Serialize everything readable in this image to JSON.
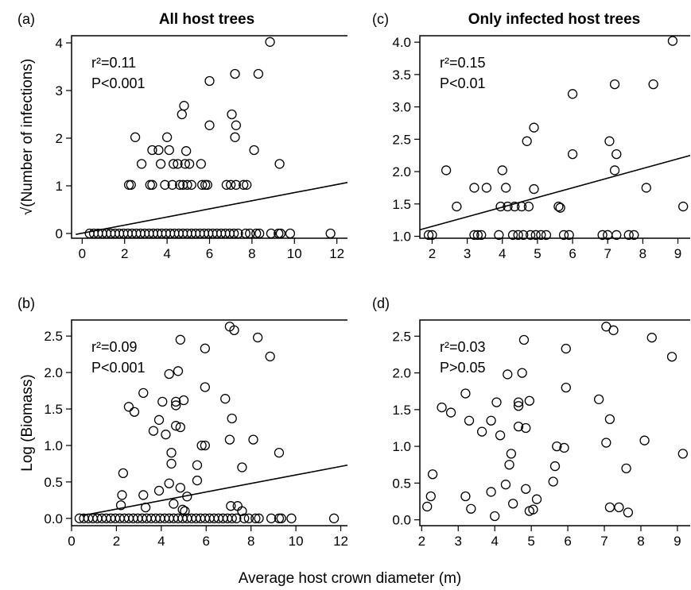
{
  "figure": {
    "shared_xlabel": "Average host crown diameter (m)"
  },
  "chart_data": [
    {
      "id": "a",
      "type": "scatter",
      "panel_label": "(a)",
      "title": "All host trees",
      "ylabel": "√(Number of infections)",
      "xlabel": "",
      "xlim": [
        -0.5,
        12.5
      ],
      "ylim": [
        -0.1,
        4.15
      ],
      "xticks": [
        0,
        2,
        4,
        6,
        8,
        10,
        12
      ],
      "xtick_labels": [
        "0",
        "2",
        "4",
        "6",
        "8",
        "10",
        "12"
      ],
      "yticks": [
        0,
        1,
        2,
        3,
        4
      ],
      "ytick_labels": [
        "0",
        "1",
        "2",
        "3",
        "4"
      ],
      "stats": {
        "r2": "r²=0.11",
        "p": "P<0.001"
      },
      "regression": {
        "x": [
          -0.3,
          12.5
        ],
        "y": [
          -0.02,
          1.07
        ]
      },
      "points": [
        [
          4.7,
          2.5
        ],
        [
          4.8,
          2.68
        ],
        [
          7.05,
          2.5
        ],
        [
          7.2,
          3.35
        ],
        [
          8.3,
          3.35
        ],
        [
          8.85,
          4.02
        ],
        [
          6.0,
          3.2
        ],
        [
          2.5,
          2.02
        ],
        [
          4.0,
          2.02
        ],
        [
          6.0,
          2.27
        ],
        [
          7.2,
          2.02
        ],
        [
          7.25,
          2.27
        ],
        [
          8.1,
          1.75
        ],
        [
          9.3,
          1.46
        ],
        [
          2.8,
          1.46
        ],
        [
          3.3,
          1.75
        ],
        [
          3.6,
          1.75
        ],
        [
          3.7,
          1.46
        ],
        [
          4.1,
          1.75
        ],
        [
          4.3,
          1.46
        ],
        [
          4.5,
          1.46
        ],
        [
          4.85,
          1.46
        ],
        [
          5.05,
          1.46
        ],
        [
          5.6,
          1.46
        ],
        [
          4.9,
          1.73
        ],
        [
          2.2,
          1.02
        ],
        [
          2.3,
          1.02
        ],
        [
          3.2,
          1.02
        ],
        [
          3.3,
          1.02
        ],
        [
          3.9,
          1.02
        ],
        [
          4.25,
          1.02
        ],
        [
          4.6,
          1.02
        ],
        [
          4.75,
          1.02
        ],
        [
          4.95,
          1.02
        ],
        [
          5.15,
          1.02
        ],
        [
          5.65,
          1.02
        ],
        [
          5.8,
          1.02
        ],
        [
          5.9,
          1.02
        ],
        [
          6.8,
          1.02
        ],
        [
          7.0,
          1.02
        ],
        [
          7.25,
          1.02
        ],
        [
          7.6,
          1.02
        ],
        [
          7.75,
          1.02
        ],
        [
          0.35,
          0
        ],
        [
          0.55,
          0
        ],
        [
          0.75,
          0
        ],
        [
          0.95,
          0
        ],
        [
          1.15,
          0
        ],
        [
          1.35,
          0
        ],
        [
          1.55,
          0
        ],
        [
          1.75,
          0
        ],
        [
          1.95,
          0
        ],
        [
          2.15,
          0
        ],
        [
          2.35,
          0
        ],
        [
          2.55,
          0
        ],
        [
          2.75,
          0
        ],
        [
          2.95,
          0
        ],
        [
          3.15,
          0
        ],
        [
          3.35,
          0
        ],
        [
          3.55,
          0
        ],
        [
          3.75,
          0
        ],
        [
          3.95,
          0
        ],
        [
          4.15,
          0
        ],
        [
          4.35,
          0
        ],
        [
          4.55,
          0
        ],
        [
          4.75,
          0
        ],
        [
          4.95,
          0
        ],
        [
          5.15,
          0
        ],
        [
          5.35,
          0
        ],
        [
          5.55,
          0
        ],
        [
          5.75,
          0
        ],
        [
          5.95,
          0
        ],
        [
          6.15,
          0
        ],
        [
          6.35,
          0
        ],
        [
          6.55,
          0
        ],
        [
          6.75,
          0
        ],
        [
          6.95,
          0
        ],
        [
          7.15,
          0
        ],
        [
          7.35,
          0
        ],
        [
          7.7,
          0
        ],
        [
          7.9,
          0
        ],
        [
          8.2,
          0
        ],
        [
          8.35,
          0
        ],
        [
          8.9,
          0
        ],
        [
          9.25,
          0
        ],
        [
          9.35,
          0
        ],
        [
          9.8,
          0
        ],
        [
          11.7,
          0
        ]
      ]
    },
    {
      "id": "b",
      "type": "scatter",
      "panel_label": "(b)",
      "title": "",
      "ylabel": "Log (Biomass)",
      "xlabel": "",
      "xlim": [
        0,
        12.3
      ],
      "ylim": [
        -0.1,
        2.72
      ],
      "xticks": [
        0,
        2,
        4,
        6,
        8,
        10,
        12
      ],
      "xtick_labels": [
        "0",
        "2",
        "4",
        "6",
        "8",
        "10",
        "12"
      ],
      "yticks": [
        0,
        0.5,
        1,
        1.5,
        2,
        2.5
      ],
      "ytick_labels": [
        "0.0",
        "0.5",
        "1.0",
        "1.5",
        "2.0",
        "2.5"
      ],
      "stats": {
        "r2": "r²=0.09",
        "p": "P<0.001"
      },
      "regression": {
        "x": [
          0.5,
          12.3
        ],
        "y": [
          0.04,
          0.73
        ]
      },
      "points": [
        [
          7.05,
          2.63
        ],
        [
          7.25,
          2.58
        ],
        [
          8.3,
          2.48
        ],
        [
          4.85,
          2.45
        ],
        [
          5.95,
          2.33
        ],
        [
          8.85,
          2.22
        ],
        [
          4.35,
          1.98
        ],
        [
          4.75,
          2.02
        ],
        [
          5.95,
          1.8
        ],
        [
          3.2,
          1.72
        ],
        [
          2.55,
          1.53
        ],
        [
          2.8,
          1.46
        ],
        [
          4.05,
          1.6
        ],
        [
          4.65,
          1.6
        ],
        [
          4.65,
          1.55
        ],
        [
          5.0,
          1.62
        ],
        [
          6.85,
          1.64
        ],
        [
          3.65,
          1.2
        ],
        [
          4.2,
          1.15
        ],
        [
          3.9,
          1.35
        ],
        [
          4.65,
          1.27
        ],
        [
          4.85,
          1.25
        ],
        [
          5.8,
          1.0
        ],
        [
          5.95,
          1.0
        ],
        [
          7.05,
          1.08
        ],
        [
          7.15,
          1.37
        ],
        [
          8.1,
          1.08
        ],
        [
          9.25,
          0.9
        ],
        [
          2.3,
          0.62
        ],
        [
          4.45,
          0.9
        ],
        [
          4.45,
          0.75
        ],
        [
          5.6,
          0.73
        ],
        [
          7.6,
          0.7
        ],
        [
          5.6,
          0.52
        ],
        [
          2.2,
          0.18
        ],
        [
          2.25,
          0.32
        ],
        [
          3.3,
          0.15
        ],
        [
          3.2,
          0.32
        ],
        [
          3.9,
          0.38
        ],
        [
          4.35,
          0.48
        ],
        [
          4.85,
          0.42
        ],
        [
          5.15,
          0.3
        ],
        [
          4.55,
          0.2
        ],
        [
          4.95,
          0.12
        ],
        [
          5.05,
          0.1
        ],
        [
          7.1,
          0.17
        ],
        [
          7.4,
          0.17
        ],
        [
          7.6,
          0.1
        ],
        [
          0.35,
          0
        ],
        [
          0.55,
          0
        ],
        [
          0.75,
          0
        ],
        [
          0.95,
          0
        ],
        [
          1.15,
          0
        ],
        [
          1.35,
          0
        ],
        [
          1.55,
          0
        ],
        [
          1.75,
          0
        ],
        [
          1.95,
          0
        ],
        [
          2.15,
          0
        ],
        [
          2.35,
          0
        ],
        [
          2.55,
          0
        ],
        [
          2.75,
          0
        ],
        [
          2.95,
          0
        ],
        [
          3.15,
          0
        ],
        [
          3.35,
          0
        ],
        [
          3.55,
          0
        ],
        [
          3.75,
          0
        ],
        [
          3.95,
          0
        ],
        [
          4.15,
          0
        ],
        [
          4.35,
          0
        ],
        [
          4.55,
          0
        ],
        [
          4.75,
          0
        ],
        [
          4.95,
          0
        ],
        [
          5.15,
          0
        ],
        [
          5.35,
          0
        ],
        [
          5.55,
          0
        ],
        [
          5.75,
          0
        ],
        [
          5.95,
          0
        ],
        [
          6.15,
          0
        ],
        [
          6.35,
          0
        ],
        [
          6.55,
          0
        ],
        [
          6.75,
          0
        ],
        [
          6.95,
          0
        ],
        [
          7.15,
          0
        ],
        [
          7.35,
          0
        ],
        [
          7.7,
          0
        ],
        [
          7.9,
          0
        ],
        [
          8.2,
          0
        ],
        [
          8.35,
          0
        ],
        [
          8.9,
          0
        ],
        [
          9.25,
          0
        ],
        [
          9.35,
          0
        ],
        [
          9.8,
          0
        ],
        [
          11.7,
          0
        ]
      ]
    },
    {
      "id": "c",
      "type": "scatter",
      "panel_label": "(c)",
      "title": "Only infected host trees",
      "ylabel": "",
      "xlabel": "",
      "xlim": [
        1.65,
        9.35
      ],
      "ylim": [
        0.97,
        4.1
      ],
      "xticks": [
        2,
        3,
        4,
        5,
        6,
        7,
        8,
        9
      ],
      "xtick_labels": [
        "2",
        "3",
        "4",
        "5",
        "6",
        "7",
        "8",
        "9"
      ],
      "yticks": [
        1,
        1.5,
        2,
        2.5,
        3,
        3.5,
        4
      ],
      "ytick_labels": [
        "1.0",
        "1.5",
        "2.0",
        "2.5",
        "3.0",
        "3.5",
        "4.0"
      ],
      "stats": {
        "r2": "r²=0.15",
        "p": "P<0.01"
      },
      "regression": {
        "x": [
          1.65,
          9.35
        ],
        "y": [
          1.1,
          2.25
        ]
      },
      "points": [
        [
          8.85,
          4.02
        ],
        [
          7.2,
          3.35
        ],
        [
          8.3,
          3.35
        ],
        [
          6.0,
          3.2
        ],
        [
          4.9,
          2.68
        ],
        [
          4.7,
          2.47
        ],
        [
          7.05,
          2.47
        ],
        [
          7.25,
          2.27
        ],
        [
          6.0,
          2.27
        ],
        [
          2.4,
          2.02
        ],
        [
          4.0,
          2.02
        ],
        [
          7.2,
          2.02
        ],
        [
          8.1,
          1.75
        ],
        [
          9.15,
          1.46
        ],
        [
          3.2,
          1.75
        ],
        [
          3.55,
          1.75
        ],
        [
          4.1,
          1.75
        ],
        [
          4.9,
          1.73
        ],
        [
          2.7,
          1.46
        ],
        [
          3.95,
          1.46
        ],
        [
          4.15,
          1.46
        ],
        [
          4.35,
          1.46
        ],
        [
          4.55,
          1.46
        ],
        [
          4.75,
          1.46
        ],
        [
          5.6,
          1.46
        ],
        [
          5.65,
          1.44
        ],
        [
          1.9,
          1.02
        ],
        [
          2.0,
          1.02
        ],
        [
          3.2,
          1.02
        ],
        [
          3.3,
          1.02
        ],
        [
          3.4,
          1.02
        ],
        [
          3.9,
          1.02
        ],
        [
          4.3,
          1.02
        ],
        [
          4.45,
          1.02
        ],
        [
          4.6,
          1.02
        ],
        [
          4.8,
          1.02
        ],
        [
          4.95,
          1.02
        ],
        [
          5.1,
          1.02
        ],
        [
          5.25,
          1.02
        ],
        [
          5.75,
          1.02
        ],
        [
          5.9,
          1.02
        ],
        [
          6.85,
          1.02
        ],
        [
          7.0,
          1.02
        ],
        [
          7.25,
          1.02
        ],
        [
          7.6,
          1.02
        ],
        [
          7.75,
          1.02
        ]
      ]
    },
    {
      "id": "d",
      "type": "scatter",
      "panel_label": "(d)",
      "title": "",
      "ylabel": "",
      "xlabel": "",
      "xlim": [
        1.95,
        9.35
      ],
      "ylim": [
        -0.08,
        2.72
      ],
      "xticks": [
        2,
        3,
        4,
        5,
        6,
        7,
        8,
        9
      ],
      "xtick_labels": [
        "2",
        "3",
        "4",
        "5",
        "6",
        "7",
        "8",
        "9"
      ],
      "yticks": [
        0,
        0.5,
        1,
        1.5,
        2,
        2.5
      ],
      "ytick_labels": [
        "0.0",
        "0.5",
        "1.0",
        "1.5",
        "2.0",
        "2.5"
      ],
      "stats": {
        "r2": "r²=0.03",
        "p": "P>0.05"
      },
      "regression": null,
      "points": [
        [
          7.05,
          2.63
        ],
        [
          7.25,
          2.58
        ],
        [
          8.3,
          2.48
        ],
        [
          4.8,
          2.45
        ],
        [
          5.95,
          2.33
        ],
        [
          8.85,
          2.22
        ],
        [
          4.35,
          1.98
        ],
        [
          4.75,
          2.0
        ],
        [
          5.95,
          1.8
        ],
        [
          3.2,
          1.72
        ],
        [
          6.85,
          1.64
        ],
        [
          4.05,
          1.6
        ],
        [
          4.65,
          1.6
        ],
        [
          4.65,
          1.55
        ],
        [
          4.95,
          1.62
        ],
        [
          2.55,
          1.53
        ],
        [
          2.8,
          1.46
        ],
        [
          3.9,
          1.35
        ],
        [
          3.3,
          1.35
        ],
        [
          7.15,
          1.37
        ],
        [
          4.65,
          1.27
        ],
        [
          3.65,
          1.2
        ],
        [
          4.15,
          1.15
        ],
        [
          4.85,
          1.25
        ],
        [
          7.05,
          1.05
        ],
        [
          8.1,
          1.08
        ],
        [
          5.7,
          1.0
        ],
        [
          5.9,
          0.98
        ],
        [
          9.15,
          0.9
        ],
        [
          4.45,
          0.9
        ],
        [
          4.4,
          0.75
        ],
        [
          5.65,
          0.73
        ],
        [
          7.6,
          0.7
        ],
        [
          2.3,
          0.62
        ],
        [
          5.6,
          0.52
        ],
        [
          4.3,
          0.48
        ],
        [
          4.85,
          0.42
        ],
        [
          3.9,
          0.38
        ],
        [
          3.2,
          0.32
        ],
        [
          2.25,
          0.32
        ],
        [
          5.15,
          0.28
        ],
        [
          4.5,
          0.22
        ],
        [
          2.15,
          0.18
        ],
        [
          3.35,
          0.15
        ],
        [
          4.95,
          0.12
        ],
        [
          5.05,
          0.14
        ],
        [
          7.15,
          0.17
        ],
        [
          7.4,
          0.17
        ],
        [
          7.65,
          0.1
        ],
        [
          4.0,
          0.05
        ]
      ]
    }
  ]
}
